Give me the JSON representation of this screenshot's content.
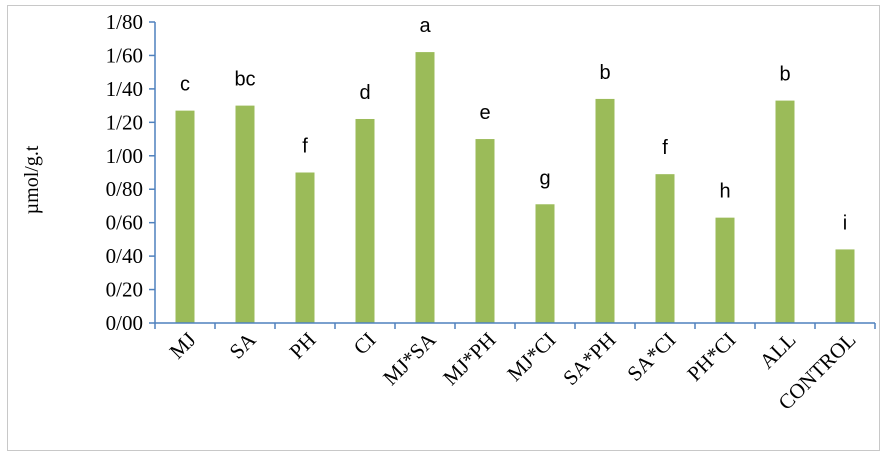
{
  "chart_data": {
    "type": "bar",
    "title": "",
    "xlabel": "",
    "ylabel": "µmol/g.t",
    "ylim": [
      0,
      1.8
    ],
    "ytick_values": [
      0,
      0.2,
      0.4,
      0.6,
      0.8,
      1.0,
      1.2,
      1.4,
      1.6,
      1.8
    ],
    "ytick_labels": [
      "0/00",
      "0/20",
      "0/40",
      "0/60",
      "0/80",
      "1/00",
      "1/20",
      "1/40",
      "1/60",
      "1/80"
    ],
    "categories": [
      "MJ",
      "SA",
      "PH",
      "CI",
      "MJ*SA",
      "MJ*PH",
      "MJ*CI",
      "SA*PH",
      "SA*CI",
      "PH*CI",
      "ALL",
      "CONTROL"
    ],
    "series": [
      {
        "values": [
          1.27,
          1.3,
          0.9,
          1.22,
          1.62,
          1.1,
          0.71,
          1.34,
          0.89,
          0.63,
          1.33,
          0.44
        ],
        "color": "#9bbb59"
      }
    ],
    "data_labels": [
      "c",
      "bc",
      "f",
      "d",
      "a",
      "e",
      "g",
      "b",
      "f",
      "h",
      "b",
      "i"
    ],
    "grid": false,
    "legend": "none"
  }
}
